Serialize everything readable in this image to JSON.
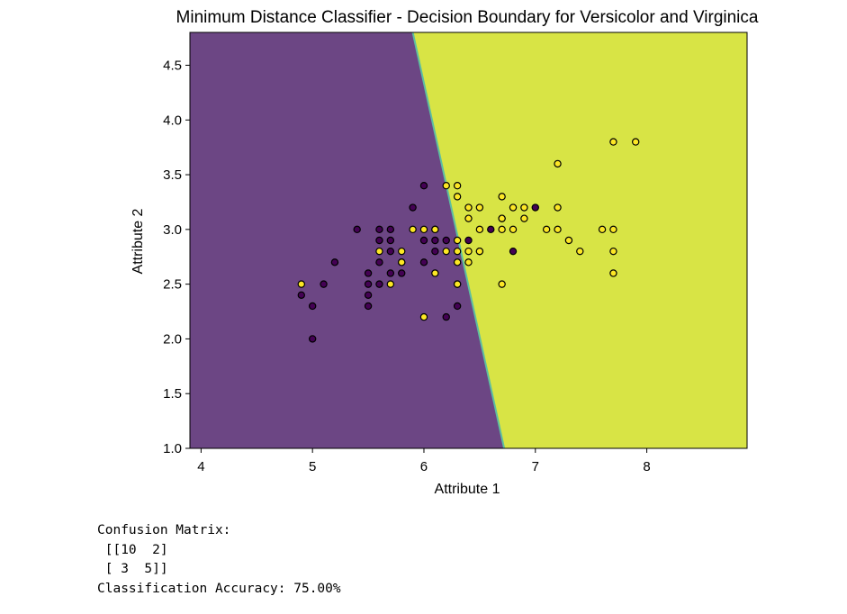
{
  "chart_data": {
    "type": "scatter",
    "title": "Minimum Distance Classifier - Decision Boundary for Versicolor and Virginica",
    "xlabel": "Attribute 1",
    "ylabel": "Attribute 2",
    "xlim": [
      3.9,
      8.9
    ],
    "ylim": [
      1.0,
      4.8
    ],
    "xticks": [
      "4",
      "5",
      "6",
      "7",
      "8"
    ],
    "yticks": [
      "1.0",
      "1.5",
      "2.0",
      "2.5",
      "3.0",
      "3.5",
      "4.0",
      "4.5"
    ],
    "grid": false,
    "legend": "none",
    "decision_boundary": {
      "points": [
        [
          6.72,
          1.0
        ],
        [
          5.9,
          4.8
        ]
      ]
    },
    "region_colors": {
      "class_0": "#6c4684",
      "class_1": "#d8e445"
    },
    "boundary_color": "#5dbfa0",
    "series": [
      {
        "color": "#440154",
        "points": [
          [
            4.9,
            2.4
          ],
          [
            5.0,
            2.3
          ],
          [
            5.0,
            2.0
          ],
          [
            5.1,
            2.5
          ],
          [
            5.2,
            2.7
          ],
          [
            5.4,
            3.0
          ],
          [
            5.5,
            2.3
          ],
          [
            5.5,
            2.4
          ],
          [
            5.5,
            2.5
          ],
          [
            5.5,
            2.6
          ],
          [
            5.6,
            2.5
          ],
          [
            5.6,
            2.7
          ],
          [
            5.6,
            2.9
          ],
          [
            5.6,
            3.0
          ],
          [
            5.7,
            2.6
          ],
          [
            5.7,
            2.8
          ],
          [
            5.7,
            2.9
          ],
          [
            5.7,
            3.0
          ],
          [
            5.8,
            2.6
          ],
          [
            5.8,
            2.7
          ],
          [
            5.9,
            3.2
          ],
          [
            6.0,
            2.7
          ],
          [
            6.0,
            2.9
          ],
          [
            6.0,
            3.4
          ],
          [
            6.1,
            2.8
          ],
          [
            6.1,
            2.9
          ],
          [
            6.1,
            3.0
          ],
          [
            6.2,
            2.2
          ],
          [
            6.2,
            2.9
          ],
          [
            6.3,
            2.3
          ],
          [
            6.3,
            2.5
          ],
          [
            6.4,
            2.9
          ],
          [
            6.5,
            2.8
          ],
          [
            6.6,
            3.0
          ],
          [
            6.7,
            3.1
          ],
          [
            6.8,
            2.8
          ],
          [
            7.0,
            3.2
          ]
        ]
      },
      {
        "color": "#fde725",
        "points": [
          [
            4.9,
            2.5
          ],
          [
            5.6,
            2.8
          ],
          [
            5.7,
            2.5
          ],
          [
            5.8,
            2.7
          ],
          [
            5.8,
            2.8
          ],
          [
            5.9,
            3.0
          ],
          [
            6.0,
            2.2
          ],
          [
            6.0,
            3.0
          ],
          [
            6.1,
            2.6
          ],
          [
            6.1,
            3.0
          ],
          [
            6.2,
            2.8
          ],
          [
            6.2,
            3.4
          ],
          [
            6.3,
            2.5
          ],
          [
            6.3,
            2.7
          ],
          [
            6.3,
            2.8
          ],
          [
            6.3,
            2.9
          ],
          [
            6.3,
            3.3
          ],
          [
            6.3,
            3.4
          ],
          [
            6.4,
            2.7
          ],
          [
            6.4,
            2.8
          ],
          [
            6.4,
            3.1
          ],
          [
            6.4,
            3.2
          ],
          [
            6.5,
            2.8
          ],
          [
            6.5,
            3.0
          ],
          [
            6.5,
            3.2
          ],
          [
            6.7,
            2.5
          ],
          [
            6.7,
            3.0
          ],
          [
            6.7,
            3.1
          ],
          [
            6.7,
            3.3
          ],
          [
            6.8,
            3.0
          ],
          [
            6.8,
            3.2
          ],
          [
            6.9,
            3.1
          ],
          [
            6.9,
            3.2
          ],
          [
            7.1,
            3.0
          ],
          [
            7.2,
            3.0
          ],
          [
            7.2,
            3.2
          ],
          [
            7.2,
            3.6
          ],
          [
            7.3,
            2.9
          ],
          [
            7.4,
            2.8
          ],
          [
            7.6,
            3.0
          ],
          [
            7.7,
            2.6
          ],
          [
            7.7,
            2.8
          ],
          [
            7.7,
            3.0
          ],
          [
            7.7,
            3.8
          ],
          [
            7.9,
            3.8
          ]
        ]
      }
    ]
  },
  "output": {
    "lines": [
      "Confusion Matrix:",
      " [[10  2]",
      " [ 3  5]]",
      "Classification Accuracy: 75.00%"
    ]
  }
}
